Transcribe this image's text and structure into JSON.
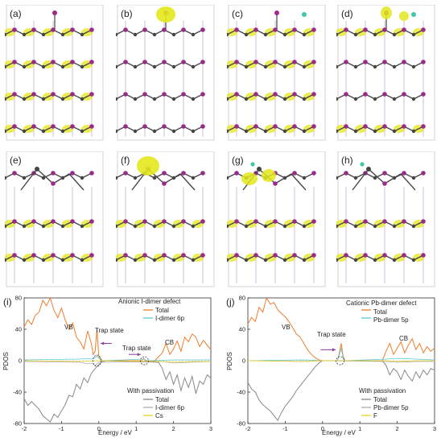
{
  "structure_panels": [
    {
      "label": "(a)"
    },
    {
      "label": "(b)"
    },
    {
      "label": "(c)"
    },
    {
      "label": "(d)"
    },
    {
      "label": "(e)"
    },
    {
      "label": "(f)"
    },
    {
      "label": "(g)"
    },
    {
      "label": "(h)"
    }
  ],
  "colors": {
    "pb": "#454545",
    "iodine": "#9b2a8c",
    "density": "#e3e81b",
    "total": "#f07c2a",
    "proj_i": "#5bc8d5",
    "passivated_total": "#888888",
    "passivated_proj": "#aaaaaa",
    "cs": "#e8d31b",
    "f": "#e8d31b",
    "arrow": "#8d3a9c"
  },
  "chart_data": [
    {
      "type": "line",
      "panel_label": "(i)",
      "title": "Anionic I-dimer defect",
      "xlabel": "Energy / eV",
      "ylabel": "PDOS",
      "xlim": [
        -2,
        3
      ],
      "ylim": [
        -80,
        80
      ],
      "xticks": [
        "-2",
        "-1",
        "0",
        "1",
        "2",
        "3"
      ],
      "yticks": [
        "80",
        "40",
        "0",
        "-40",
        "-80"
      ],
      "annotations": [
        "VB",
        "CB",
        "Trap state",
        "Trap state"
      ],
      "legend_top": [
        "Total",
        "I-dimer 6p"
      ],
      "legend_bottom_title": "With passivation",
      "legend_bottom": [
        "Total",
        "I-dimer 6p",
        "Cs"
      ],
      "series": [
        {
          "name": "Total",
          "x": [
            -2.0,
            -1.9,
            -1.8,
            -1.7,
            -1.6,
            -1.5,
            -1.4,
            -1.3,
            -1.2,
            -1.1,
            -1.0,
            -0.9,
            -0.8,
            -0.7,
            -0.6,
            -0.5,
            -0.4,
            -0.3,
            -0.2,
            -0.15,
            -0.1,
            -0.05,
            0.0,
            0.05,
            0.1,
            0.2,
            1.0,
            1.15,
            1.2,
            1.25,
            1.3,
            1.5,
            1.7,
            1.8,
            1.9,
            2.0,
            2.1,
            2.2,
            2.3,
            2.4,
            2.5,
            2.6,
            2.7,
            2.8,
            2.9,
            3.0
          ],
          "y": [
            43,
            52,
            46,
            58,
            62,
            77,
            70,
            80,
            64,
            55,
            67,
            52,
            40,
            48,
            30,
            24,
            15,
            38,
            22,
            8,
            12,
            40,
            5,
            2,
            0,
            0,
            0,
            0,
            3,
            0,
            0,
            0,
            10,
            22,
            8,
            15,
            25,
            12,
            30,
            24,
            34,
            30,
            18,
            26,
            20,
            14
          ]
        },
        {
          "name": "I-dimer 6p",
          "x": [
            -2.0,
            -0.5,
            -0.3,
            -0.2,
            -0.1,
            -0.05,
            0.0,
            0.1,
            1.2,
            1.25,
            1.3,
            2.0,
            3.0
          ],
          "y": [
            1,
            2,
            3,
            2,
            4,
            6,
            3,
            0,
            2,
            1,
            0,
            1,
            1
          ]
        },
        {
          "name": "Total (passivated)",
          "x": [
            -2.0,
            -1.9,
            -1.8,
            -1.6,
            -1.5,
            -1.4,
            -1.3,
            -1.2,
            -1.1,
            -1.0,
            -0.9,
            -0.8,
            -0.7,
            -0.6,
            -0.5,
            -0.4,
            -0.3,
            -0.2,
            -0.1,
            0.0,
            0.1,
            0.2,
            1.6,
            1.7,
            1.8,
            1.9,
            2.0,
            2.1,
            2.2,
            2.3,
            2.4,
            2.5,
            2.6,
            2.7,
            2.8,
            2.9,
            3.0
          ],
          "y": [
            -48,
            -57,
            -52,
            -62,
            -70,
            -74,
            -78,
            -68,
            -72,
            -64,
            -56,
            -44,
            -46,
            -30,
            -36,
            -22,
            -28,
            -16,
            -10,
            -5,
            -1,
            0,
            -2,
            -10,
            -24,
            -14,
            -30,
            -18,
            -38,
            -22,
            -34,
            -20,
            -42,
            -26,
            -30,
            -18,
            -22
          ]
        },
        {
          "name": "I-dimer 6p (passivated)",
          "x": [
            -2.0,
            -0.5,
            -0.3,
            -0.2,
            -0.1,
            0.0,
            1.7,
            2.0,
            2.5,
            3.0
          ],
          "y": [
            -1,
            -2,
            -4,
            -3,
            -6,
            -2,
            -1,
            -3,
            -2,
            -1
          ]
        },
        {
          "name": "Cs",
          "x": [
            -2.0,
            -0.5,
            0.0,
            1.7,
            2.0,
            2.5,
            3.0
          ],
          "y": [
            0,
            -1,
            0,
            -1,
            -2,
            -1,
            -1
          ]
        }
      ]
    },
    {
      "type": "line",
      "panel_label": "(j)",
      "title": "Cationic Pb-dimer defect",
      "xlabel": "Energy / eV",
      "ylabel": "PDOS",
      "xlim": [
        -2,
        3
      ],
      "ylim": [
        -80,
        80
      ],
      "xticks": [
        "-2",
        "-1",
        "0",
        "1",
        "2",
        "3"
      ],
      "yticks": [
        "80",
        "40",
        "0",
        "-40",
        "-80"
      ],
      "annotations": [
        "VB",
        "CB",
        "Trap state"
      ],
      "legend_top": [
        "Total",
        "Pb-dimer 5p"
      ],
      "legend_bottom_title": "With passivation",
      "legend_bottom": [
        "Total",
        "Pb-dimer 5p",
        "F"
      ],
      "series": [
        {
          "name": "Total",
          "x": [
            -2.0,
            -1.9,
            -1.8,
            -1.7,
            -1.6,
            -1.5,
            -1.4,
            -1.3,
            -1.2,
            -1.1,
            -1.0,
            -0.9,
            -0.8,
            -0.7,
            -0.6,
            -0.5,
            -0.4,
            -0.3,
            -0.2,
            -0.1,
            0.0,
            0.4,
            0.45,
            0.5,
            0.55,
            0.6,
            1.6,
            1.7,
            1.8,
            1.9,
            2.0,
            2.1,
            2.2,
            2.3,
            2.4,
            2.5,
            2.6,
            2.7,
            2.8,
            2.9,
            3.0
          ],
          "y": [
            47,
            55,
            50,
            68,
            62,
            80,
            72,
            74,
            65,
            60,
            56,
            50,
            42,
            34,
            30,
            22,
            14,
            8,
            4,
            1,
            0,
            0,
            10,
            22,
            6,
            0,
            0,
            12,
            22,
            8,
            16,
            24,
            10,
            20,
            28,
            14,
            22,
            10,
            18,
            12,
            16
          ]
        },
        {
          "name": "Pb-dimer 5p",
          "x": [
            -2.0,
            -0.5,
            0.0,
            0.4,
            0.45,
            0.5,
            0.55,
            0.6,
            1.7,
            2.0,
            2.5,
            3.0
          ],
          "y": [
            0,
            1,
            0,
            0,
            8,
            16,
            4,
            0,
            2,
            3,
            2,
            1
          ]
        },
        {
          "name": "Total (passivated)",
          "x": [
            -2.0,
            -1.9,
            -1.8,
            -1.7,
            -1.6,
            -1.5,
            -1.4,
            -1.3,
            -1.2,
            -1.1,
            -1.0,
            -0.9,
            -0.8,
            -0.7,
            -0.6,
            -0.5,
            -0.4,
            -0.3,
            -0.2,
            -0.1,
            0.0,
            1.6,
            1.7,
            1.8,
            1.9,
            2.0,
            2.1,
            2.2,
            2.3,
            2.4,
            2.5,
            2.6,
            2.7,
            2.8,
            2.9,
            3.0
          ],
          "y": [
            -28,
            -36,
            -40,
            -50,
            -56,
            -60,
            -64,
            -70,
            -76,
            -66,
            -58,
            -52,
            -46,
            -38,
            -32,
            -26,
            -20,
            -14,
            -8,
            -3,
            0,
            0,
            -6,
            -18,
            -10,
            -14,
            -24,
            -12,
            -20,
            -26,
            -14,
            -22,
            -12,
            -18,
            -10,
            -12
          ]
        },
        {
          "name": "Pb-dimer 5p (passivated)",
          "x": [
            -2.0,
            -0.5,
            0.0,
            1.7,
            2.0,
            2.5,
            3.0
          ],
          "y": [
            0,
            -1,
            0,
            -1,
            -2,
            -1,
            -1
          ]
        },
        {
          "name": "F",
          "x": [
            -2.0,
            -0.5,
            0.0,
            1.7,
            2.0,
            2.5,
            3.0
          ],
          "y": [
            0,
            -1,
            0,
            0,
            -1,
            0,
            0
          ]
        }
      ]
    }
  ]
}
